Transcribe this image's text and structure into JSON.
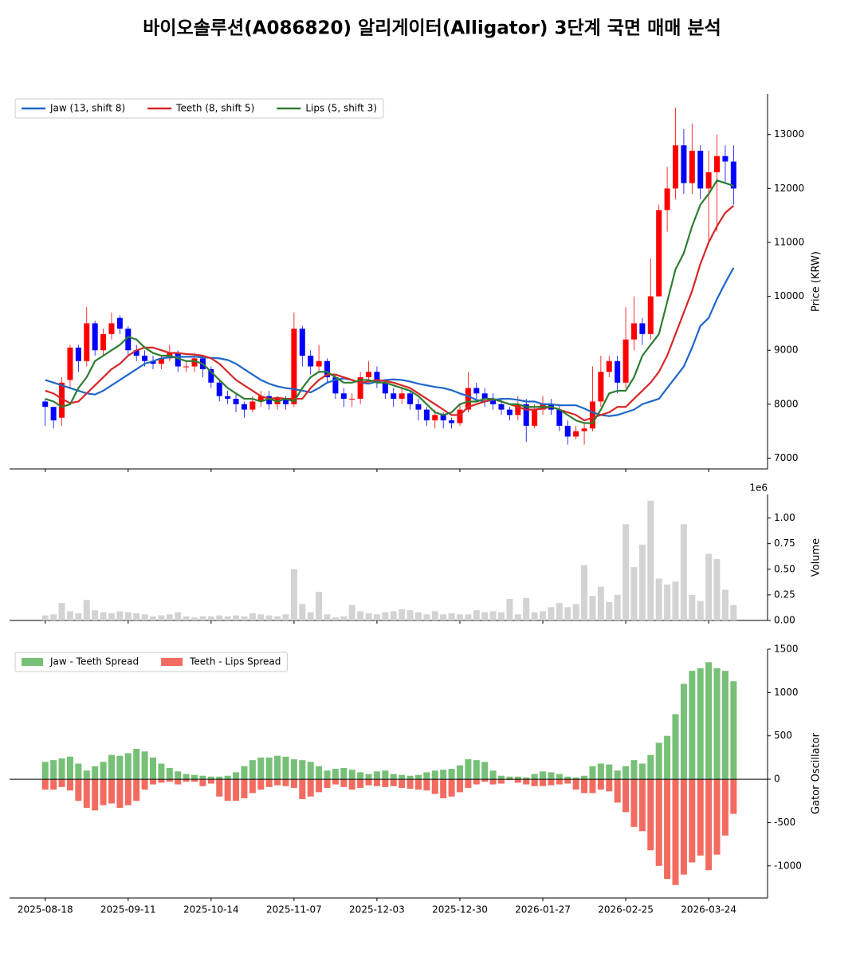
{
  "chart_data": [
    {
      "type": "candlestick",
      "title": "바이오솔루션(A086820) 알리게이터(Alligator) 3단계 국면 매매 분석",
      "ylabel": "Price (KRW)",
      "up_color": "#ff0000",
      "down_color": "#0000ff",
      "open": [
        8050,
        7950,
        7750,
        8450,
        9050,
        8800,
        9500,
        9000,
        9300,
        9600,
        9400,
        9000,
        8900,
        8800,
        8750,
        8850,
        8950,
        8700,
        8700,
        8850,
        8650,
        8400,
        8150,
        8100,
        8000,
        7900,
        8050,
        8150,
        8000,
        8100,
        8000,
        9400,
        8900,
        8700,
        8800,
        8500,
        8200,
        8100,
        8100,
        8500,
        8600,
        8400,
        8200,
        8100,
        8200,
        8000,
        7900,
        7700,
        7800,
        7700,
        7650,
        7900,
        8300,
        8200,
        8100,
        8000,
        7900,
        7800,
        8000,
        7600,
        7900,
        8000,
        7900,
        7600,
        7400,
        7500,
        7550,
        8050,
        8600,
        8800,
        8400,
        9200,
        9500,
        9300,
        10000,
        11600,
        12000,
        12800,
        12100,
        12700,
        12000,
        12300,
        12600,
        12500
      ],
      "high": [
        8100,
        7900,
        8500,
        9100,
        9100,
        9800,
        9550,
        9400,
        9700,
        9650,
        9450,
        9100,
        9000,
        8900,
        8900,
        9100,
        9000,
        8800,
        8950,
        8900,
        8700,
        8450,
        8250,
        8200,
        8050,
        8150,
        8250,
        8250,
        8150,
        8150,
        9700,
        9450,
        9000,
        9100,
        8850,
        8550,
        8300,
        8200,
        8600,
        8800,
        8700,
        8450,
        8300,
        8300,
        8250,
        8100,
        7950,
        7900,
        7850,
        7750,
        8000,
        8600,
        8400,
        8300,
        8200,
        8100,
        7950,
        8150,
        8100,
        8000,
        8150,
        8100,
        8000,
        7700,
        7600,
        7650,
        8700,
        8900,
        8900,
        8900,
        9800,
        10000,
        9600,
        10700,
        11700,
        12400,
        13500,
        13100,
        13200,
        12800,
        12700,
        13000,
        12800,
        12800
      ],
      "low": [
        7600,
        7550,
        7600,
        8300,
        8600,
        8700,
        8900,
        8900,
        9200,
        9300,
        8900,
        8800,
        8700,
        8650,
        8650,
        8800,
        8600,
        8600,
        8600,
        8500,
        8300,
        8050,
        8000,
        7850,
        7750,
        7850,
        7950,
        7900,
        7900,
        7900,
        7950,
        8700,
        8550,
        8600,
        8400,
        8100,
        7950,
        7950,
        8000,
        8400,
        8300,
        8100,
        7950,
        8000,
        7900,
        7700,
        7600,
        7550,
        7550,
        7550,
        7600,
        7850,
        8100,
        7950,
        7900,
        7800,
        7700,
        7700,
        7300,
        7550,
        7800,
        7800,
        7500,
        7250,
        7350,
        7250,
        7500,
        7950,
        8500,
        8200,
        8300,
        9000,
        9100,
        9200,
        10000,
        11200,
        11800,
        11900,
        11900,
        11800,
        11000,
        11200,
        12100,
        11700
      ],
      "close": [
        7950,
        7700,
        8400,
        9050,
        8800,
        9500,
        9000,
        9300,
        9500,
        9400,
        9000,
        8900,
        8800,
        8750,
        8850,
        8950,
        8700,
        8700,
        8850,
        8650,
        8400,
        8150,
        8100,
        8000,
        7900,
        8050,
        8150,
        8000,
        8100,
        8000,
        9400,
        8900,
        8700,
        8800,
        8500,
        8200,
        8100,
        8100,
        8500,
        8600,
        8400,
        8200,
        8100,
        8200,
        8000,
        7900,
        7700,
        7800,
        7700,
        7650,
        7900,
        8300,
        8200,
        8100,
        8000,
        7900,
        7800,
        8000,
        7600,
        7900,
        8000,
        7900,
        7600,
        7400,
        7500,
        7550,
        8050,
        8600,
        8800,
        8400,
        9200,
        9500,
        9300,
        10000,
        11600,
        12000,
        12800,
        12100,
        12700,
        12000,
        12300,
        12600,
        12500,
        12000
      ],
      "lines": [
        {
          "name": "Jaw (13, shift 8)",
          "color": "#1f67c7",
          "values": [
            8450,
            8400,
            8350,
            8300,
            8250,
            8200,
            8180,
            8250,
            8350,
            8450,
            8550,
            8650,
            8750,
            8800,
            8850,
            8870,
            8880,
            8880,
            8880,
            8870,
            8860,
            8850,
            8820,
            8750,
            8650,
            8550,
            8450,
            8380,
            8330,
            8300,
            8280,
            8250,
            8220,
            8300,
            8400,
            8450,
            8480,
            8450,
            8400,
            8380,
            8420,
            8450,
            8460,
            8450,
            8420,
            8380,
            8350,
            8320,
            8300,
            8260,
            8200,
            8150,
            8080,
            8050,
            8080,
            8100,
            8100,
            8080,
            8050,
            8050,
            8000,
            8000,
            7980,
            7980,
            7980,
            7920,
            7850,
            7800,
            7780,
            7800,
            7850,
            7900,
            8000,
            8050,
            8100,
            8300,
            8500,
            8700,
            9050,
            9450,
            9600,
            9950,
            10250,
            10530
          ]
        },
        {
          "name": "Teeth (8, shift 5)",
          "color": "#d62728",
          "values": [
            8250,
            8200,
            8100,
            8020,
            8050,
            8200,
            8350,
            8500,
            8650,
            8750,
            8900,
            9000,
            9050,
            9050,
            9000,
            8950,
            8950,
            8930,
            8920,
            8900,
            8850,
            8750,
            8600,
            8450,
            8350,
            8250,
            8150,
            8100,
            8120,
            8100,
            8100,
            8100,
            8300,
            8450,
            8550,
            8550,
            8500,
            8450,
            8400,
            8420,
            8450,
            8430,
            8400,
            8350,
            8300,
            8200,
            8100,
            8000,
            7900,
            7800,
            7800,
            7950,
            8000,
            8050,
            8100,
            8050,
            8000,
            7950,
            7900,
            7900,
            7920,
            7950,
            7900,
            7850,
            7800,
            7700,
            7750,
            7800,
            7850,
            7950,
            7950,
            8100,
            8250,
            8400,
            8600,
            8900,
            9300,
            9700,
            10100,
            10600,
            11000,
            11300,
            11550,
            11680
          ]
        },
        {
          "name": "Lips (5, shift 3)",
          "color": "#2e7d32",
          "values": [
            8100,
            8050,
            7950,
            8000,
            8300,
            8500,
            8800,
            8900,
            9000,
            9100,
            9250,
            9200,
            9050,
            8950,
            8900,
            8900,
            8850,
            8800,
            8800,
            8750,
            8600,
            8450,
            8300,
            8200,
            8100,
            8100,
            8050,
            8100,
            8050,
            8100,
            8050,
            8300,
            8500,
            8600,
            8600,
            8500,
            8400,
            8400,
            8450,
            8450,
            8400,
            8400,
            8350,
            8300,
            8250,
            8150,
            8000,
            7850,
            7800,
            7850,
            8000,
            8050,
            8050,
            8100,
            8100,
            8050,
            8000,
            8000,
            7950,
            7950,
            7950,
            7950,
            7900,
            7800,
            7700,
            7650,
            7650,
            7900,
            8200,
            8250,
            8250,
            8500,
            8900,
            9100,
            9300,
            9900,
            10500,
            10800,
            11300,
            11700,
            11900,
            12150,
            12100,
            12050
          ]
        }
      ],
      "legend": "upper left",
      "ylim": [
        6800,
        13750
      ],
      "yticks": [
        7000,
        8000,
        9000,
        10000,
        11000,
        12000,
        13000
      ]
    },
    {
      "type": "bar",
      "ylabel": "Volume",
      "offset_label": "1e6",
      "color": "#d3d3d3",
      "values": [
        50000,
        60000,
        170000,
        90000,
        70000,
        200000,
        100000,
        80000,
        70000,
        90000,
        80000,
        70000,
        60000,
        40000,
        50000,
        60000,
        80000,
        40000,
        30000,
        40000,
        40000,
        50000,
        40000,
        50000,
        40000,
        70000,
        60000,
        50000,
        40000,
        60000,
        500000,
        160000,
        80000,
        280000,
        60000,
        30000,
        40000,
        150000,
        90000,
        70000,
        60000,
        80000,
        90000,
        110000,
        100000,
        80000,
        60000,
        90000,
        60000,
        70000,
        60000,
        60000,
        100000,
        80000,
        90000,
        80000,
        210000,
        60000,
        220000,
        80000,
        90000,
        130000,
        170000,
        130000,
        160000,
        540000,
        240000,
        330000,
        180000,
        250000,
        940000,
        520000,
        740000,
        1170000,
        410000,
        350000,
        380000,
        940000,
        250000,
        190000,
        650000,
        600000,
        300000,
        150000
      ],
      "ylim": [
        0,
        1230000
      ],
      "yticks": [
        {
          "value": 0,
          "label": "0.00"
        },
        {
          "value": 250000,
          "label": "0.25"
        },
        {
          "value": 500000,
          "label": "0.50"
        },
        {
          "value": 750000,
          "label": "0.75"
        },
        {
          "value": 1000000,
          "label": "1.00"
        }
      ]
    },
    {
      "type": "bar",
      "ylabel": "Gator Oscillator",
      "categories": [
        "2025-08-18",
        null,
        null,
        null,
        null,
        null,
        null,
        null,
        null,
        null,
        "2025-09-11",
        null,
        null,
        null,
        null,
        null,
        null,
        null,
        null,
        null,
        "2025-10-14",
        null,
        null,
        null,
        null,
        null,
        null,
        null,
        null,
        null,
        "2025-11-07",
        null,
        null,
        null,
        null,
        null,
        null,
        null,
        null,
        null,
        "2025-12-03",
        null,
        null,
        null,
        null,
        null,
        null,
        null,
        null,
        null,
        "2025-12-30",
        null,
        null,
        null,
        null,
        null,
        null,
        null,
        null,
        null,
        "2026-01-27",
        null,
        null,
        null,
        null,
        null,
        null,
        null,
        null,
        null,
        "2026-02-25",
        null,
        null,
        null,
        null,
        null,
        null,
        null,
        null,
        null,
        "2026-03-24",
        null,
        null,
        null
      ],
      "series": [
        {
          "name": "Jaw - Teeth Spread",
          "color": "#77c077",
          "values": [
            200,
            220,
            240,
            260,
            180,
            100,
            150,
            200,
            280,
            270,
            300,
            350,
            320,
            250,
            180,
            130,
            90,
            60,
            50,
            40,
            30,
            30,
            40,
            80,
            150,
            220,
            250,
            250,
            270,
            260,
            230,
            220,
            200,
            150,
            100,
            120,
            130,
            110,
            80,
            60,
            90,
            100,
            60,
            50,
            40,
            50,
            80,
            100,
            110,
            120,
            160,
            230,
            220,
            200,
            100,
            40,
            30,
            30,
            20,
            60,
            90,
            80,
            60,
            30,
            20,
            40,
            150,
            180,
            170,
            100,
            150,
            220,
            180,
            280,
            420,
            500,
            750,
            1100,
            1250,
            1280,
            1350,
            1280,
            1250,
            1130
          ]
        },
        {
          "name": "Teeth - Lips Spread",
          "color": "#f26b60",
          "values": [
            -120,
            -120,
            -90,
            -130,
            -250,
            -330,
            -360,
            -300,
            -280,
            -330,
            -300,
            -250,
            -120,
            -60,
            -40,
            -30,
            -60,
            -30,
            -30,
            -80,
            -50,
            -200,
            -250,
            -250,
            -220,
            -160,
            -120,
            -90,
            -70,
            -80,
            -100,
            -230,
            -200,
            -150,
            -100,
            -60,
            -90,
            -120,
            -100,
            -70,
            -80,
            -90,
            -80,
            -100,
            -110,
            -120,
            -130,
            -170,
            -220,
            -200,
            -150,
            -100,
            -60,
            -30,
            -60,
            -50,
            -10,
            -40,
            -60,
            -80,
            -80,
            -70,
            -60,
            -50,
            -120,
            -160,
            -160,
            -120,
            -140,
            -270,
            -380,
            -550,
            -600,
            -820,
            -1000,
            -1150,
            -1220,
            -1100,
            -960,
            -880,
            -1050,
            -870,
            -650,
            -400
          ]
        }
      ],
      "legend": "upper left",
      "ylim": [
        -1370,
        1500
      ],
      "yticks": [
        -1000,
        -500,
        0,
        500,
        1000,
        1500
      ]
    }
  ]
}
